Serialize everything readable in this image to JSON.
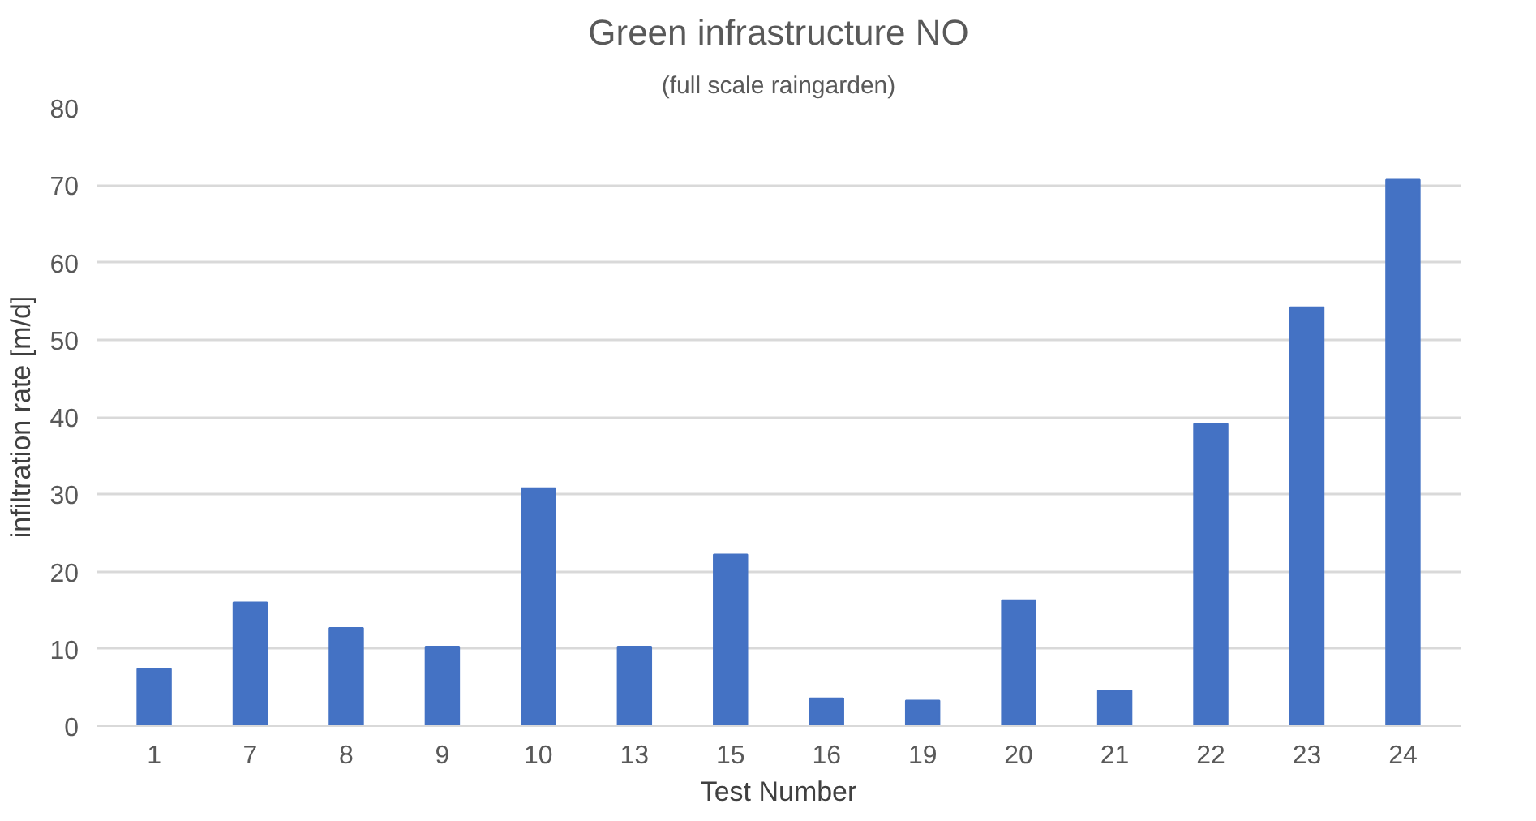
{
  "chart_data": {
    "type": "bar",
    "title": "Green infrastructure NO",
    "subtitle": "(full scale raingarden)",
    "xlabel": "Test Number",
    "ylabel": "infiltration rate [m/d]",
    "categories": [
      "1",
      "7",
      "8",
      "9",
      "10",
      "13",
      "15",
      "16",
      "19",
      "20",
      "21",
      "22",
      "23",
      "24"
    ],
    "values": [
      7.4,
      16.0,
      12.7,
      10.3,
      30.8,
      10.3,
      22.2,
      3.6,
      3.3,
      16.3,
      4.6,
      39.1,
      54.2,
      70.7
    ],
    "color": "#4472c4",
    "ylim": [
      0,
      80
    ],
    "yticks": [
      0,
      10,
      20,
      30,
      40,
      50,
      60,
      70,
      80
    ],
    "grid": "y"
  }
}
